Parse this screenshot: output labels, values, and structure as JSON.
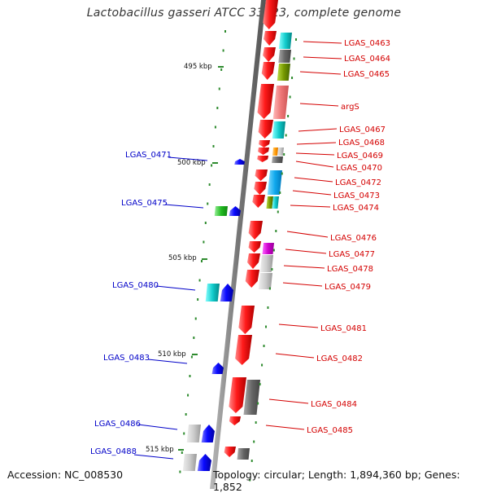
{
  "title": "Lactobacillus gasseri ATCC 33323, complete genome",
  "footer": {
    "accession": "Accession: NC_008530",
    "topology": "Topology: circular; Length: 1,894,360 bp; Genes: 1,852"
  },
  "ticks": [
    {
      "label": "495 kbp"
    },
    {
      "label": "500 kbp"
    },
    {
      "label": "505 kbp"
    },
    {
      "label": "510 kbp"
    },
    {
      "label": "515 kbp"
    }
  ],
  "genes_right": [
    {
      "name": "LGAS_0463"
    },
    {
      "name": "LGAS_0464"
    },
    {
      "name": "LGAS_0465"
    },
    {
      "name": "argS"
    },
    {
      "name": "LGAS_0467"
    },
    {
      "name": "LGAS_0468"
    },
    {
      "name": "LGAS_0469"
    },
    {
      "name": "LGAS_0470"
    },
    {
      "name": "LGAS_0472"
    },
    {
      "name": "LGAS_0473"
    },
    {
      "name": "LGAS_0474"
    },
    {
      "name": "LGAS_0476"
    },
    {
      "name": "LGAS_0477"
    },
    {
      "name": "LGAS_0478"
    },
    {
      "name": "LGAS_0479"
    },
    {
      "name": "LGAS_0481"
    },
    {
      "name": "LGAS_0482"
    },
    {
      "name": "LGAS_0484"
    },
    {
      "name": "LGAS_0485"
    }
  ],
  "genes_left": [
    {
      "name": "LGAS_0471"
    },
    {
      "name": "LGAS_0475"
    },
    {
      "name": "LGAS_0480"
    },
    {
      "name": "LGAS_0483"
    },
    {
      "name": "LGAS_0486"
    },
    {
      "name": "LGAS_0488"
    }
  ],
  "colors": {
    "forward_strand": "#0000ff",
    "reverse_strand": "#ff0000",
    "right_label": "#d40000",
    "left_label": "#0000c8",
    "backbone": "#888888",
    "tick": "#2e8b2e"
  }
}
